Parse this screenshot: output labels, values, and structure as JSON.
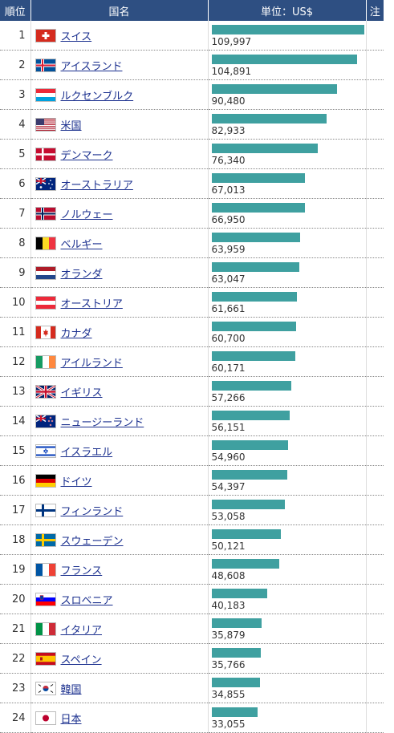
{
  "header": {
    "rank": "順位",
    "name": "国名",
    "value": "単位：US$",
    "note": "注"
  },
  "chart_data": {
    "type": "bar",
    "max_value": 116000,
    "rows": [
      {
        "rank": "1",
        "country": "スイス",
        "value": 109997,
        "value_label": "109,997",
        "flag": "switzerland-flag"
      },
      {
        "rank": "2",
        "country": "アイスランド",
        "value": 104891,
        "value_label": "104,891",
        "flag": "iceland-flag"
      },
      {
        "rank": "3",
        "country": "ルクセンブルク",
        "value": 90480,
        "value_label": "90,480",
        "flag": "luxembourg-flag"
      },
      {
        "rank": "4",
        "country": "米国",
        "value": 82933,
        "value_label": "82,933",
        "flag": "usa-flag"
      },
      {
        "rank": "5",
        "country": "デンマーク",
        "value": 76340,
        "value_label": "76,340",
        "flag": "denmark-flag"
      },
      {
        "rank": "6",
        "country": "オーストラリア",
        "value": 67013,
        "value_label": "67,013",
        "flag": "australia-flag"
      },
      {
        "rank": "7",
        "country": "ノルウェー",
        "value": 66950,
        "value_label": "66,950",
        "flag": "norway-flag"
      },
      {
        "rank": "8",
        "country": "ベルギー",
        "value": 63959,
        "value_label": "63,959",
        "flag": "belgium-flag"
      },
      {
        "rank": "9",
        "country": "オランダ",
        "value": 63047,
        "value_label": "63,047",
        "flag": "netherlands-flag"
      },
      {
        "rank": "10",
        "country": "オーストリア",
        "value": 61661,
        "value_label": "61,661",
        "flag": "austria-flag"
      },
      {
        "rank": "11",
        "country": "カナダ",
        "value": 60700,
        "value_label": "60,700",
        "flag": "canada-flag"
      },
      {
        "rank": "12",
        "country": "アイルランド",
        "value": 60171,
        "value_label": "60,171",
        "flag": "ireland-flag"
      },
      {
        "rank": "13",
        "country": "イギリス",
        "value": 57266,
        "value_label": "57,266",
        "flag": "uk-flag"
      },
      {
        "rank": "14",
        "country": "ニュージーランド",
        "value": 56151,
        "value_label": "56,151",
        "flag": "new-zealand-flag"
      },
      {
        "rank": "15",
        "country": "イスラエル",
        "value": 54960,
        "value_label": "54,960",
        "flag": "israel-flag"
      },
      {
        "rank": "16",
        "country": "ドイツ",
        "value": 54397,
        "value_label": "54,397",
        "flag": "germany-flag"
      },
      {
        "rank": "17",
        "country": "フィンランド",
        "value": 53058,
        "value_label": "53,058",
        "flag": "finland-flag"
      },
      {
        "rank": "18",
        "country": "スウェーデン",
        "value": 50121,
        "value_label": "50,121",
        "flag": "sweden-flag"
      },
      {
        "rank": "19",
        "country": "フランス",
        "value": 48608,
        "value_label": "48,608",
        "flag": "france-flag"
      },
      {
        "rank": "20",
        "country": "スロベニア",
        "value": 40183,
        "value_label": "40,183",
        "flag": "slovenia-flag"
      },
      {
        "rank": "21",
        "country": "イタリア",
        "value": 35879,
        "value_label": "35,879",
        "flag": "italy-flag"
      },
      {
        "rank": "22",
        "country": "スペイン",
        "value": 35766,
        "value_label": "35,766",
        "flag": "spain-flag"
      },
      {
        "rank": "23",
        "country": "韓国",
        "value": 34855,
        "value_label": "34,855",
        "flag": "south-korea-flag"
      },
      {
        "rank": "24",
        "country": "日本",
        "value": 33055,
        "value_label": "33,055",
        "flag": "japan-flag"
      }
    ],
    "bar_color": "#3fa0a0"
  },
  "colors": {
    "header_bg": "#2e4f82",
    "link": "#1a2f8e"
  }
}
